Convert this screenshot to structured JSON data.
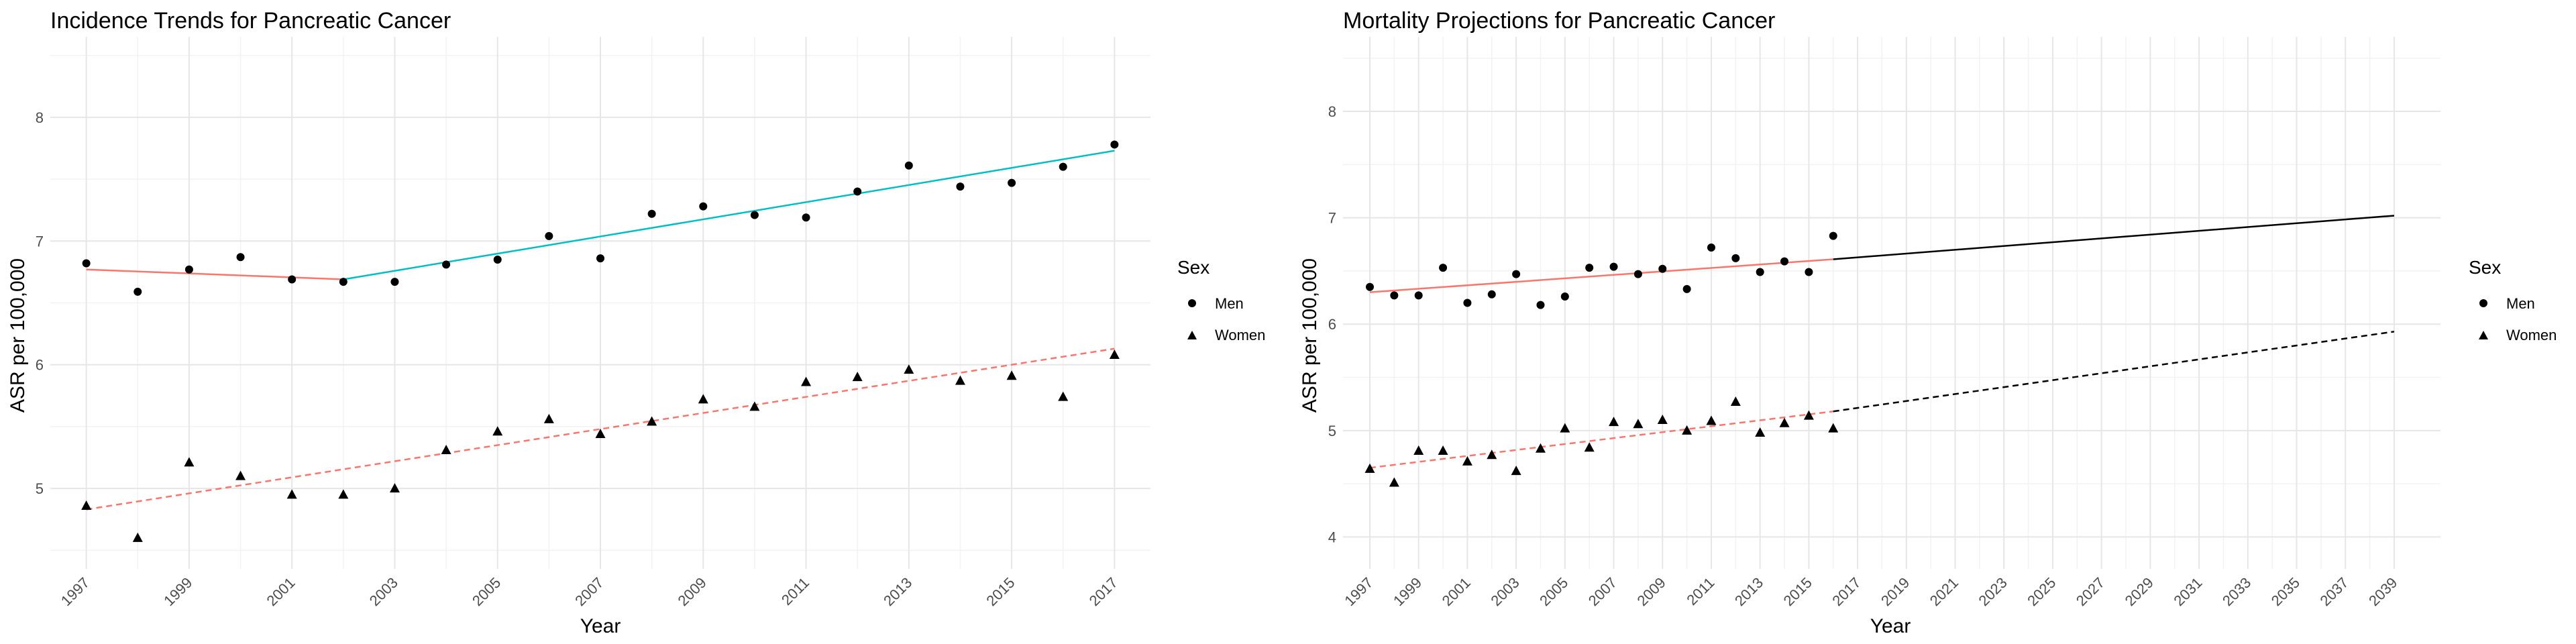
{
  "chart_data": [
    {
      "type": "line",
      "title": "Incidence Trends for Pancreatic Cancer",
      "xlabel": "Year",
      "ylabel": "ASR per 100,000",
      "xlim": [
        1996.3,
        2017.7
      ],
      "ylim": [
        4.35,
        8.65
      ],
      "x_ticks": [
        1997,
        1999,
        2001,
        2003,
        2005,
        2007,
        2009,
        2011,
        2013,
        2015,
        2017
      ],
      "y_ticks": [
        5,
        6,
        7,
        8
      ],
      "grid": true,
      "legend": {
        "title": "Sex",
        "position": "right",
        "entries": [
          "Men",
          "Women"
        ]
      },
      "series": [
        {
          "name": "Men",
          "marker": "circle",
          "x": [
            1997,
            1998,
            1999,
            2000,
            2001,
            2002,
            2003,
            2004,
            2005,
            2006,
            2007,
            2008,
            2009,
            2010,
            2011,
            2012,
            2013,
            2014,
            2015,
            2016,
            2017
          ],
          "y": [
            6.82,
            6.59,
            6.77,
            6.87,
            6.69,
            6.67,
            6.67,
            6.81,
            6.85,
            7.04,
            6.86,
            7.22,
            7.28,
            7.21,
            7.19,
            7.4,
            7.61,
            7.44,
            7.47,
            7.6,
            7.78
          ]
        },
        {
          "name": "Women",
          "marker": "triangle",
          "x": [
            1997,
            1998,
            1999,
            2000,
            2001,
            2002,
            2003,
            2004,
            2005,
            2006,
            2007,
            2008,
            2009,
            2010,
            2011,
            2012,
            2013,
            2014,
            2015,
            2016,
            2017
          ],
          "y": [
            4.86,
            4.6,
            5.21,
            5.1,
            4.95,
            4.95,
            5.0,
            5.31,
            5.46,
            5.56,
            5.44,
            5.54,
            5.72,
            5.66,
            5.86,
            5.9,
            5.96,
            5.87,
            5.91,
            5.74,
            6.08
          ]
        }
      ],
      "fits": [
        {
          "series": "Men",
          "style": "solid",
          "color": "#f8766d",
          "x": [
            1997,
            2002
          ],
          "y": [
            6.77,
            6.69
          ]
        },
        {
          "series": "Men",
          "style": "solid",
          "color": "#00bfc4",
          "x": [
            2002,
            2017
          ],
          "y": [
            6.69,
            7.73
          ]
        },
        {
          "series": "Women",
          "style": "dashed",
          "color": "#f8766d",
          "x": [
            1997,
            2017
          ],
          "y": [
            4.83,
            6.13
          ]
        }
      ]
    },
    {
      "type": "line",
      "title": "Mortality Projections for Pancreatic Cancer",
      "xlabel": "Year",
      "ylabel": "ASR per 100,000",
      "xlim": [
        1995.9,
        2040.9
      ],
      "ylim": [
        3.7,
        8.7
      ],
      "x_ticks": [
        1997,
        1999,
        2001,
        2003,
        2005,
        2007,
        2009,
        2011,
        2013,
        2015,
        2017,
        2019,
        2021,
        2023,
        2025,
        2027,
        2029,
        2031,
        2033,
        2035,
        2037,
        2039
      ],
      "y_ticks": [
        4,
        5,
        6,
        7,
        8
      ],
      "grid": true,
      "legend": {
        "title": "Sex",
        "position": "right",
        "entries": [
          "Men",
          "Women"
        ]
      },
      "series": [
        {
          "name": "Men",
          "marker": "circle",
          "x": [
            1997,
            1998,
            1999,
            2000,
            2001,
            2002,
            2003,
            2004,
            2005,
            2006,
            2007,
            2008,
            2009,
            2010,
            2011,
            2012,
            2013,
            2014,
            2015,
            2016
          ],
          "y": [
            6.35,
            6.27,
            6.27,
            6.53,
            6.2,
            6.28,
            6.47,
            6.18,
            6.26,
            6.53,
            6.54,
            6.47,
            6.52,
            6.33,
            6.72,
            6.62,
            6.49,
            6.59,
            6.49,
            6.83
          ]
        },
        {
          "name": "Women",
          "marker": "triangle",
          "x": [
            1997,
            1998,
            1999,
            2000,
            2001,
            2002,
            2003,
            2004,
            2005,
            2006,
            2007,
            2008,
            2009,
            2010,
            2011,
            2012,
            2013,
            2014,
            2015,
            2016
          ],
          "y": [
            4.64,
            4.51,
            4.81,
            4.81,
            4.71,
            4.77,
            4.62,
            4.83,
            5.02,
            4.84,
            5.08,
            5.06,
            5.1,
            5.0,
            5.09,
            5.27,
            4.98,
            5.07,
            5.14,
            5.02
          ]
        }
      ],
      "fits": [
        {
          "series": "Men",
          "style": "solid",
          "color": "#f8766d",
          "x": [
            1997,
            2016
          ],
          "y": [
            6.3,
            6.61
          ]
        },
        {
          "series": "Men",
          "style": "solid",
          "color": "#000000",
          "x": [
            2016,
            2039
          ],
          "y": [
            6.61,
            7.02
          ]
        },
        {
          "series": "Women",
          "style": "dashed",
          "color": "#f8766d",
          "x": [
            1997,
            2016
          ],
          "y": [
            4.65,
            5.18
          ]
        },
        {
          "series": "Women",
          "style": "dashed",
          "color": "#000000",
          "x": [
            2016,
            2039
          ],
          "y": [
            5.18,
            5.93
          ]
        }
      ]
    }
  ]
}
